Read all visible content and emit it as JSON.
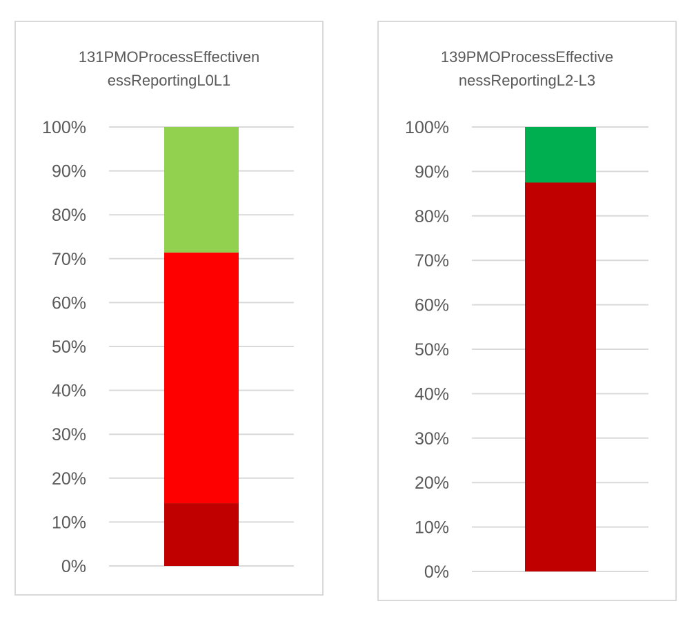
{
  "chart_data": [
    {
      "type": "bar",
      "stacked": true,
      "percent_stacked": true,
      "title_lines": [
        "131PMOProcessEffectiven",
        "essReportingL0L1"
      ],
      "categories": [
        ""
      ],
      "series": [
        {
          "values": [
            14.3
          ],
          "color": "#c00000"
        },
        {
          "values": [
            57.1
          ],
          "color": "#ff0000"
        },
        {
          "values": [
            28.6
          ],
          "color": "#92d050"
        }
      ],
      "ylim": [
        0,
        100
      ],
      "yticks": [
        "0%",
        "10%",
        "20%",
        "30%",
        "40%",
        "50%",
        "60%",
        "70%",
        "80%",
        "90%",
        "100%"
      ],
      "grid": true,
      "legend": "none"
    },
    {
      "type": "bar",
      "stacked": true,
      "percent_stacked": true,
      "title_lines": [
        "139PMOProcessEffective",
        "nessReportingL2-L3"
      ],
      "categories": [
        ""
      ],
      "series": [
        {
          "values": [
            87.5
          ],
          "color": "#c00000"
        },
        {
          "values": [
            12.5
          ],
          "color": "#00b050"
        }
      ],
      "ylim": [
        0,
        100
      ],
      "yticks": [
        "0%",
        "10%",
        "20%",
        "30%",
        "40%",
        "50%",
        "60%",
        "70%",
        "80%",
        "90%",
        "100%"
      ],
      "grid": true,
      "legend": "none"
    }
  ]
}
